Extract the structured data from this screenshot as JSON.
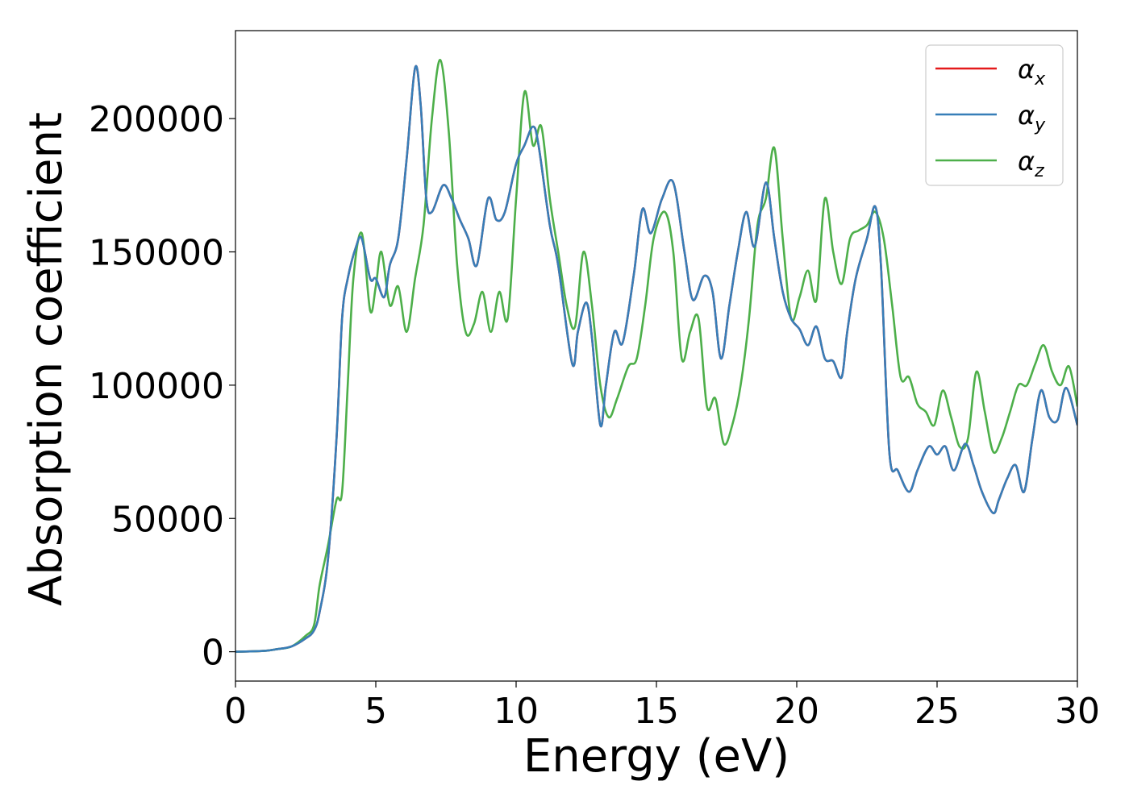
{
  "chart_data": {
    "type": "line",
    "title": "",
    "xlabel": "Energy (eV)",
    "ylabel": "Absorption coefficient",
    "xlim": [
      0,
      30
    ],
    "ylim": [
      -11000,
      233000
    ],
    "xticks": [
      0,
      5,
      10,
      15,
      20,
      25,
      30
    ],
    "yticks": [
      0,
      50000,
      100000,
      150000,
      200000
    ],
    "grid": false,
    "legend_position": "top-right",
    "series": [
      {
        "name": "αx",
        "symbol": "α",
        "subscript": "x",
        "color": "#e41a1c",
        "x": [
          0,
          1,
          1.5,
          2,
          2.5,
          2.8,
          3,
          3.3,
          3.6,
          3.8,
          4,
          4.3,
          4.5,
          4.8,
          5,
          5.3,
          5.5,
          5.8,
          6.1,
          6.4,
          6.6,
          6.8,
          7,
          7.4,
          7.7,
          8,
          8.3,
          8.6,
          9,
          9.3,
          9.6,
          10,
          10.3,
          10.6,
          10.8,
          11.2,
          11.5,
          12,
          12.2,
          12.5,
          12.7,
          13,
          13.2,
          13.5,
          13.8,
          14.2,
          14.5,
          14.8,
          15.2,
          15.6,
          16,
          16.3,
          16.7,
          17,
          17.3,
          17.6,
          17.9,
          18.2,
          18.5,
          18.9,
          19.2,
          19.5,
          19.8,
          20.1,
          20.4,
          20.7,
          21,
          21.3,
          21.6,
          21.8,
          22.1,
          22.5,
          22.8,
          23,
          23.3,
          23.6,
          24,
          24.3,
          24.7,
          25,
          25.3,
          25.6,
          26,
          26.3,
          26.6,
          27,
          27.2,
          27.5,
          27.8,
          28.1,
          28.4,
          28.7,
          29,
          29.3,
          29.6,
          30
        ],
        "y": [
          0,
          300,
          1000,
          2000,
          5000,
          8000,
          15000,
          35000,
          80000,
          125000,
          140000,
          152000,
          155000,
          140000,
          140000,
          133000,
          145000,
          155000,
          185000,
          219000,
          205000,
          170000,
          165000,
          175000,
          170000,
          162000,
          155000,
          145000,
          170000,
          162000,
          165000,
          183000,
          190000,
          197000,
          190000,
          160000,
          145000,
          108000,
          120000,
          131000,
          118000,
          85000,
          100000,
          120000,
          116000,
          142000,
          166000,
          157000,
          170000,
          176000,
          150000,
          132000,
          141000,
          135000,
          110000,
          130000,
          150000,
          165000,
          152000,
          176000,
          155000,
          135000,
          125000,
          121000,
          115000,
          122000,
          110000,
          109000,
          103000,
          120000,
          140000,
          155000,
          167000,
          145000,
          75000,
          68000,
          60000,
          68000,
          77000,
          74000,
          77000,
          68000,
          78000,
          70000,
          60000,
          52000,
          57000,
          65000,
          70000,
          60000,
          80000,
          98000,
          88000,
          87000,
          99000,
          85000
        ]
      },
      {
        "name": "αy",
        "symbol": "α",
        "subscript": "y",
        "color": "#377eb8",
        "x": [
          0,
          1,
          1.5,
          2,
          2.5,
          2.8,
          3,
          3.3,
          3.6,
          3.8,
          4,
          4.3,
          4.5,
          4.8,
          5,
          5.3,
          5.5,
          5.8,
          6.1,
          6.4,
          6.6,
          6.8,
          7,
          7.4,
          7.7,
          8,
          8.3,
          8.6,
          9,
          9.3,
          9.6,
          10,
          10.3,
          10.6,
          10.8,
          11.2,
          11.5,
          12,
          12.2,
          12.5,
          12.7,
          13,
          13.2,
          13.5,
          13.8,
          14.2,
          14.5,
          14.8,
          15.2,
          15.6,
          16,
          16.3,
          16.7,
          17,
          17.3,
          17.6,
          17.9,
          18.2,
          18.5,
          18.9,
          19.2,
          19.5,
          19.8,
          20.1,
          20.4,
          20.7,
          21,
          21.3,
          21.6,
          21.8,
          22.1,
          22.5,
          22.8,
          23,
          23.3,
          23.6,
          24,
          24.3,
          24.7,
          25,
          25.3,
          25.6,
          26,
          26.3,
          26.6,
          27,
          27.2,
          27.5,
          27.8,
          28.1,
          28.4,
          28.7,
          29,
          29.3,
          29.6,
          30
        ],
        "y": [
          0,
          300,
          1000,
          2000,
          5000,
          8000,
          15000,
          35000,
          80000,
          125000,
          140000,
          152000,
          155000,
          140000,
          140000,
          133000,
          145000,
          155000,
          185000,
          219000,
          205000,
          170000,
          165000,
          175000,
          170000,
          162000,
          155000,
          145000,
          170000,
          162000,
          165000,
          183000,
          190000,
          197000,
          190000,
          160000,
          145000,
          108000,
          120000,
          131000,
          118000,
          85000,
          100000,
          120000,
          116000,
          142000,
          166000,
          157000,
          170000,
          176000,
          150000,
          132000,
          141000,
          135000,
          110000,
          130000,
          150000,
          165000,
          152000,
          176000,
          155000,
          135000,
          125000,
          121000,
          115000,
          122000,
          110000,
          109000,
          103000,
          120000,
          140000,
          155000,
          167000,
          145000,
          75000,
          68000,
          60000,
          68000,
          77000,
          74000,
          77000,
          68000,
          78000,
          70000,
          60000,
          52000,
          57000,
          65000,
          70000,
          60000,
          80000,
          98000,
          88000,
          87000,
          99000,
          85000
        ]
      },
      {
        "name": "αz",
        "symbol": "α",
        "subscript": "z",
        "color": "#4daf4a",
        "x": [
          0,
          1,
          1.5,
          2,
          2.5,
          2.8,
          3,
          3.3,
          3.6,
          3.8,
          4,
          4.2,
          4.5,
          4.8,
          5,
          5.2,
          5.5,
          5.8,
          6.1,
          6.4,
          6.7,
          7,
          7.3,
          7.6,
          7.9,
          8.2,
          8.5,
          8.8,
          9.1,
          9.4,
          9.7,
          10,
          10.3,
          10.6,
          10.9,
          11.2,
          11.5,
          11.8,
          12.1,
          12.4,
          12.7,
          13,
          13.3,
          13.6,
          14,
          14.3,
          14.6,
          14.9,
          15.3,
          15.6,
          15.9,
          16.2,
          16.5,
          16.8,
          17.1,
          17.4,
          17.7,
          18,
          18.3,
          18.6,
          18.9,
          19.2,
          19.5,
          19.8,
          20.1,
          20.4,
          20.7,
          21,
          21.3,
          21.6,
          21.9,
          22.2,
          22.5,
          22.8,
          23.1,
          23.4,
          23.7,
          24,
          24.3,
          24.6,
          24.9,
          25.2,
          25.5,
          25.8,
          26.1,
          26.4,
          26.7,
          27,
          27.3,
          27.6,
          27.9,
          28.2,
          28.5,
          28.8,
          29.1,
          29.4,
          29.7,
          30
        ],
        "y": [
          0,
          300,
          1000,
          2000,
          6000,
          10000,
          25000,
          40000,
          57000,
          60000,
          100000,
          140000,
          157000,
          128000,
          137000,
          150000,
          130000,
          137000,
          120000,
          140000,
          160000,
          200000,
          222000,
          195000,
          145000,
          120000,
          123000,
          135000,
          120000,
          135000,
          125000,
          170000,
          210000,
          190000,
          197000,
          170000,
          150000,
          130000,
          122000,
          150000,
          130000,
          100000,
          88000,
          95000,
          107000,
          110000,
          130000,
          155000,
          165000,
          150000,
          110000,
          120000,
          125000,
          92000,
          95000,
          78000,
          85000,
          100000,
          125000,
          160000,
          170000,
          189000,
          155000,
          125000,
          133000,
          143000,
          132000,
          170000,
          150000,
          138000,
          155000,
          158000,
          160000,
          165000,
          155000,
          130000,
          103000,
          103000,
          93000,
          90000,
          85000,
          98000,
          88000,
          77000,
          80000,
          105000,
          90000,
          75000,
          80000,
          90000,
          100000,
          100000,
          108000,
          115000,
          105000,
          100000,
          107000,
          92000
        ]
      }
    ]
  }
}
